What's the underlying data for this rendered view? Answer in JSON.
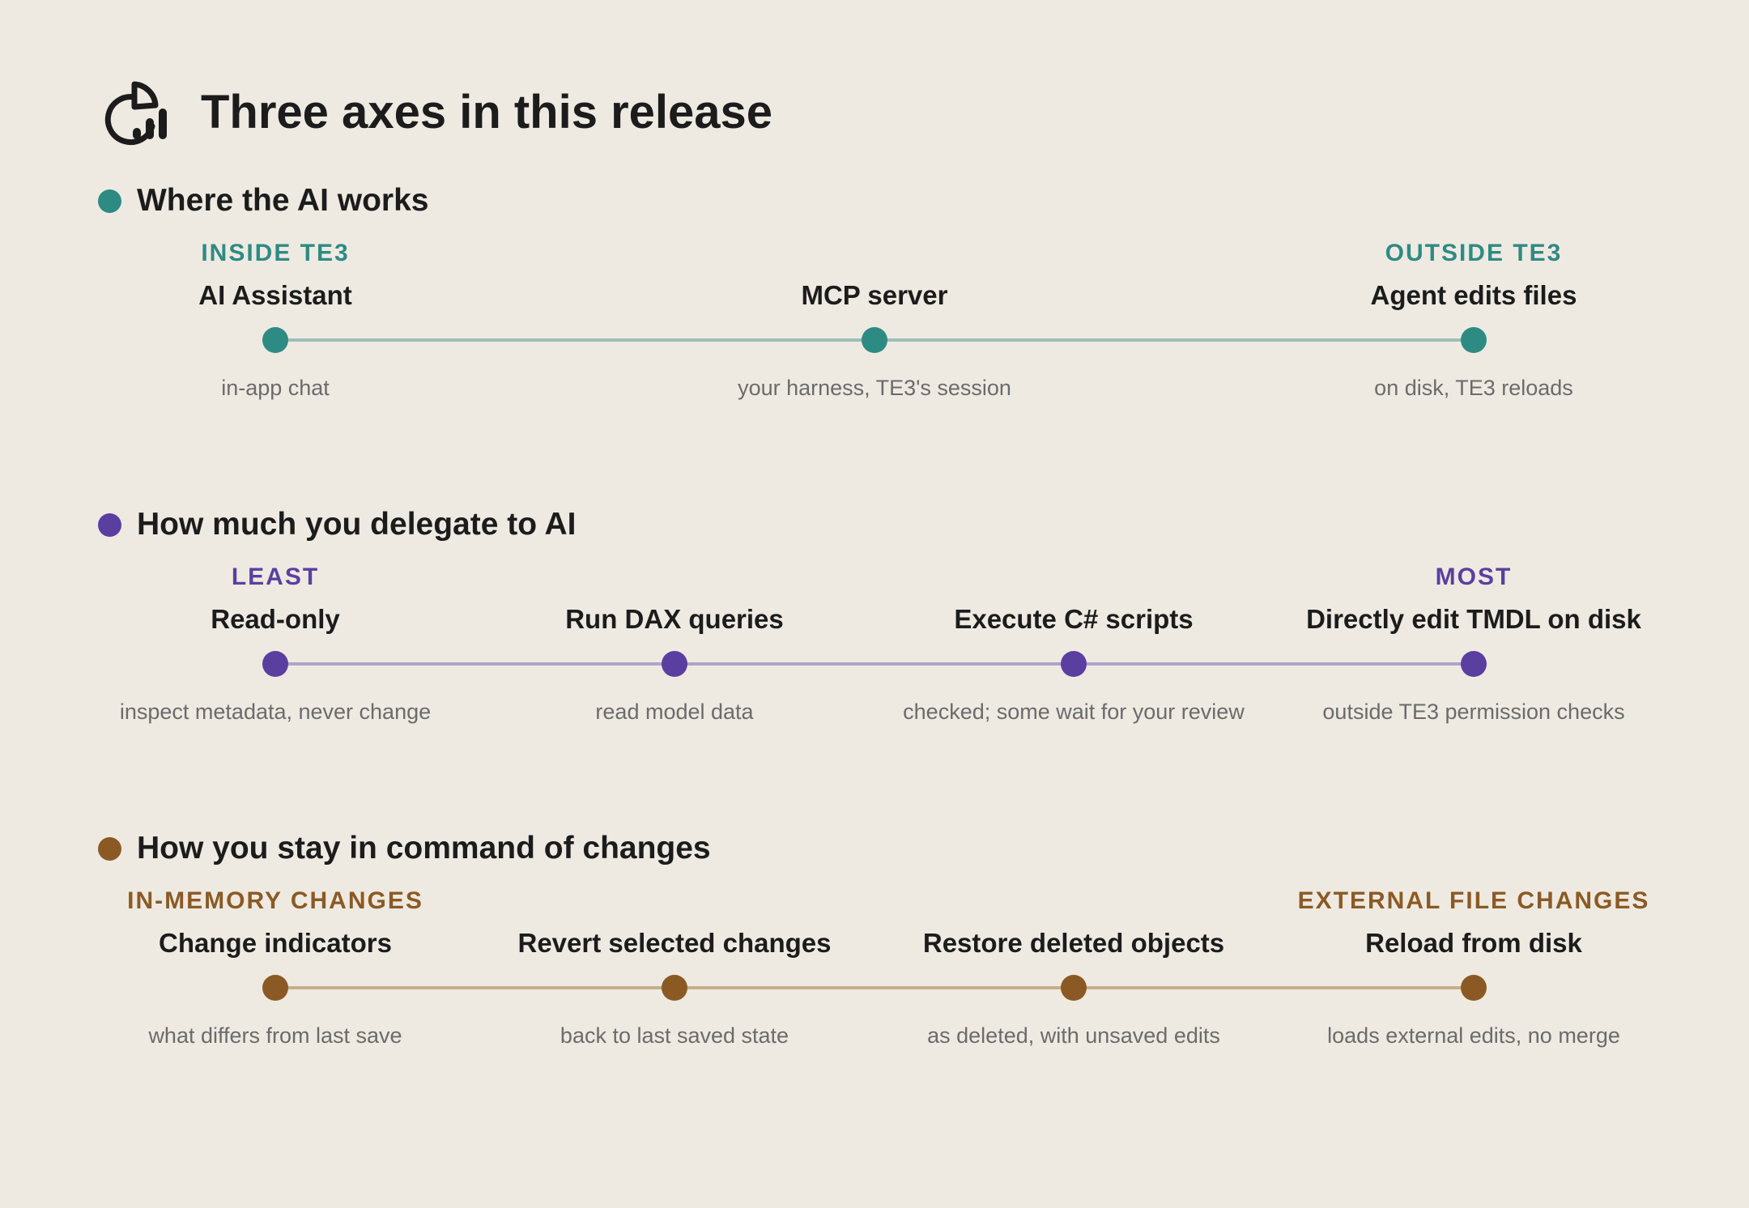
{
  "title": "Three axes in this release",
  "icon": "chart-icon",
  "sections": [
    {
      "heading": "Where the AI works",
      "color": "#2e8b84",
      "line_color": "#9dbdb6",
      "nodes": [
        {
          "category": "INSIDE TE3",
          "label": "AI Assistant",
          "desc": "in-app chat"
        },
        {
          "category": "",
          "label": "MCP server",
          "desc": "your harness, TE3's session"
        },
        {
          "category": "OUTSIDE TE3",
          "label": "Agent edits files",
          "desc": "on disk, TE3 reloads"
        }
      ]
    },
    {
      "heading": "How much you delegate to AI",
      "color": "#5b3fa0",
      "line_color": "#b0a3c8",
      "nodes": [
        {
          "category": "LEAST",
          "label": "Read-only",
          "desc": "inspect metadata, never change"
        },
        {
          "category": "",
          "label": "Run DAX queries",
          "desc": "read model data"
        },
        {
          "category": "",
          "label": "Execute C# scripts",
          "desc": "checked; some wait for your review"
        },
        {
          "category": "MOST",
          "label": "Directly edit TMDL on disk",
          "desc": "outside TE3 permission checks"
        }
      ]
    },
    {
      "heading": "How you stay in command of changes",
      "color": "#8b5a24",
      "line_color": "#c8ad8a",
      "nodes": [
        {
          "category": "IN-MEMORY CHANGES",
          "label": "Change indicators",
          "desc": "what differs from last save"
        },
        {
          "category": "",
          "label": "Revert selected changes",
          "desc": "back to last saved state"
        },
        {
          "category": "",
          "label": "Restore deleted objects",
          "desc": "as deleted, with unsaved edits"
        },
        {
          "category": "EXTERNAL FILE CHANGES",
          "label": "Reload from disk",
          "desc": "loads external edits, no merge"
        }
      ]
    }
  ]
}
